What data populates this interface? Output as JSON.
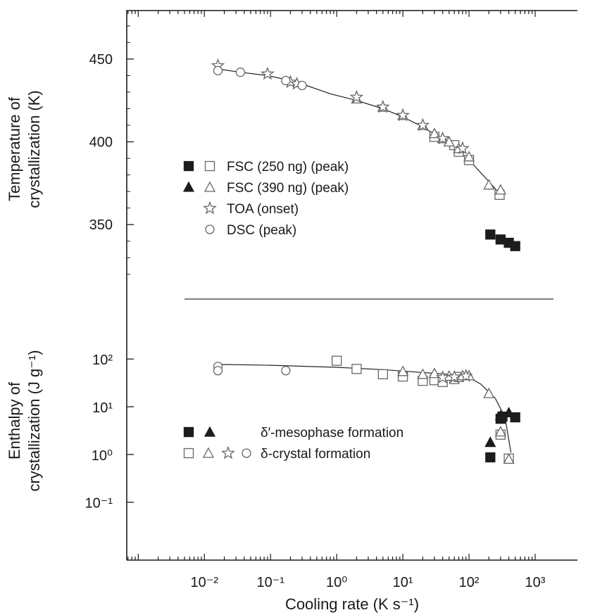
{
  "chart_data": [
    {
      "id": "top",
      "type": "scatter",
      "ylabel": [
        "Temperature of",
        "crystallization (K)"
      ],
      "y_scale": "linear",
      "ylim": [
        308,
        478
      ],
      "yticks": [
        350,
        400,
        450
      ],
      "ytick_labels": [
        "350",
        "400",
        "450"
      ],
      "x_scale": "log",
      "xlim": [
        0.00067,
        1000
      ],
      "fit_curve": [
        [
          0.016,
          444
        ],
        [
          0.035,
          442
        ],
        [
          0.09,
          440
        ],
        [
          0.2,
          437
        ],
        [
          0.35,
          434
        ],
        [
          0.8,
          429
        ],
        [
          2,
          425
        ],
        [
          5,
          420
        ],
        [
          10,
          415
        ],
        [
          20,
          409
        ],
        [
          35,
          403
        ],
        [
          60,
          397
        ],
        [
          100,
          389
        ],
        [
          200,
          376
        ],
        [
          300,
          368
        ]
      ],
      "series": [
        {
          "name": "FSC (250 ng) (peak)",
          "marker": "square",
          "fill": "filled",
          "points": [
            [
              210,
              344
            ],
            [
              300,
              341
            ],
            [
              400,
              339
            ],
            [
              500,
              337
            ]
          ]
        },
        {
          "name": "FSC (250 ng) (peak)",
          "marker": "square",
          "fill": "open",
          "points": [
            [
              30,
              403
            ],
            [
              60,
              398
            ],
            [
              70,
              394
            ],
            [
              100,
              389
            ],
            [
              290,
              368
            ]
          ]
        },
        {
          "name": "FSC (390 ng) (peak)",
          "marker": "triangle",
          "fill": "open",
          "points": [
            [
              2,
              426
            ],
            [
              5,
              421
            ],
            [
              10,
              416
            ],
            [
              20,
              410
            ],
            [
              30,
              405
            ],
            [
              40,
              402
            ],
            [
              50,
              400
            ],
            [
              70,
              396
            ],
            [
              100,
              391
            ],
            [
              200,
              374
            ],
            [
              300,
              371
            ]
          ]
        },
        {
          "name": "TOA (onset)",
          "marker": "star",
          "fill": "open",
          "points": [
            [
              0.016,
              446
            ],
            [
              0.09,
              441
            ],
            [
              0.2,
              436
            ],
            [
              0.25,
              435
            ],
            [
              2,
              427
            ],
            [
              5,
              421
            ],
            [
              10,
              416
            ],
            [
              20,
              410
            ],
            [
              40,
              402
            ],
            [
              80,
              396
            ]
          ]
        },
        {
          "name": "DSC (peak)",
          "marker": "circle",
          "fill": "open",
          "points": [
            [
              0.016,
              443
            ],
            [
              0.035,
              442
            ],
            [
              0.17,
              437
            ],
            [
              0.3,
              434
            ]
          ]
        }
      ],
      "legend": [
        {
          "markers": [
            [
              "square",
              "filled"
            ],
            [
              "square",
              "open"
            ]
          ],
          "label": "FSC (250 ng) (peak)"
        },
        {
          "markers": [
            [
              "triangle",
              "filled"
            ],
            [
              "triangle",
              "open"
            ]
          ],
          "label": "FSC (390 ng) (peak)"
        },
        {
          "markers": [
            [
              "star",
              "open"
            ]
          ],
          "label": "TOA (onset)"
        },
        {
          "markers": [
            [
              "circle",
              "open"
            ]
          ],
          "label": "DSC (peak)"
        }
      ]
    },
    {
      "id": "bottom",
      "type": "scatter",
      "ylabel": [
        "Enthalpy of",
        "crystallization (J g⁻¹)"
      ],
      "y_scale": "log",
      "ylim": [
        0.0075,
        550
      ],
      "yticks": [
        0.1,
        1,
        10,
        100
      ],
      "ytick_labels": [
        "10⁻¹",
        "10⁰",
        "10¹",
        "10²"
      ],
      "x_scale": "log",
      "xlim": [
        0.00067,
        1000
      ],
      "xticks": [
        0.01,
        0.1,
        1,
        10,
        100,
        1000
      ],
      "xtick_labels": [
        "10⁻²",
        "10⁻¹",
        "10⁰",
        "10¹",
        "10²",
        "10³"
      ],
      "xlabel": "Cooling rate (K s⁻¹)",
      "fit_curve": [
        [
          0.016,
          77
        ],
        [
          0.1,
          74
        ],
        [
          1,
          67
        ],
        [
          5,
          60
        ],
        [
          10,
          56
        ],
        [
          30,
          50
        ],
        [
          60,
          47
        ],
        [
          90,
          44
        ],
        [
          150,
          30
        ],
        [
          250,
          15
        ],
        [
          350,
          6
        ],
        [
          430,
          1.1
        ]
      ],
      "series": [
        {
          "name": "δ′-mesophase formation",
          "marker": "square",
          "fill": "filled",
          "points": [
            [
              210,
              0.87
            ],
            [
              300,
              5.6
            ],
            [
              320,
              6.2
            ],
            [
              500,
              6.0
            ]
          ]
        },
        {
          "name": "δ′-mesophase formation",
          "marker": "triangle",
          "fill": "filled",
          "points": [
            [
              210,
              1.8
            ],
            [
              300,
              6.5
            ],
            [
              400,
              7.5
            ]
          ]
        },
        {
          "name": "δ-crystal formation",
          "marker": "square",
          "fill": "open",
          "points": [
            [
              1,
              92
            ],
            [
              2,
              62
            ],
            [
              5,
              48
            ],
            [
              10,
              43
            ],
            [
              20,
              35
            ],
            [
              30,
              36
            ],
            [
              40,
              33
            ],
            [
              60,
              38
            ],
            [
              70,
              42
            ],
            [
              300,
              2.6
            ],
            [
              400,
              0.82
            ]
          ]
        },
        {
          "name": "δ-crystal formation",
          "marker": "triangle",
          "fill": "open",
          "points": [
            [
              10,
              55
            ],
            [
              20,
              48
            ],
            [
              30,
              50
            ],
            [
              50,
              44
            ],
            [
              80,
              45
            ],
            [
              100,
              45
            ],
            [
              200,
              19
            ],
            [
              300,
              3.0
            ],
            [
              400,
              0.8
            ]
          ]
        },
        {
          "name": "δ-crystal formation",
          "marker": "star",
          "fill": "open",
          "points": [
            [
              40,
              41
            ],
            [
              60,
              42
            ],
            [
              90,
              44
            ]
          ]
        },
        {
          "name": "δ-crystal formation",
          "marker": "circle",
          "fill": "open",
          "points": [
            [
              0.016,
              70
            ],
            [
              0.016,
              57
            ],
            [
              0.17,
              57
            ]
          ]
        }
      ],
      "legend": [
        {
          "markers": [
            [
              "square",
              "filled"
            ],
            [
              "triangle",
              "filled"
            ]
          ],
          "label": "δ′-mesophase formation"
        },
        {
          "markers": [
            [
              "square",
              "open"
            ],
            [
              "triangle",
              "open"
            ],
            [
              "star",
              "open"
            ],
            [
              "circle",
              "open"
            ]
          ],
          "label": "δ-crystal formation"
        }
      ]
    }
  ]
}
